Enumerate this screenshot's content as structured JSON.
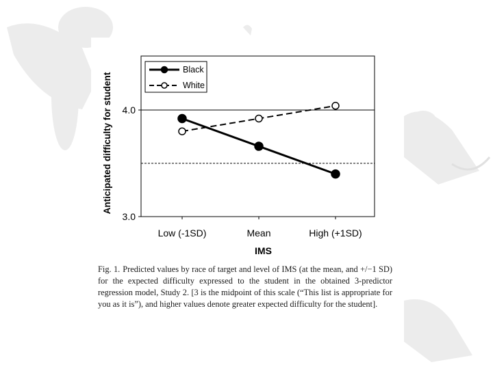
{
  "chart_data": {
    "type": "line",
    "categories": [
      "Low (-1SD)",
      "Mean",
      "High (+1SD)"
    ],
    "series": [
      {
        "name": "Black",
        "values": [
          3.92,
          3.66,
          3.4
        ],
        "style": "solid",
        "marker": "filled-circle"
      },
      {
        "name": "White",
        "values": [
          3.8,
          3.92,
          4.04
        ],
        "style": "dashed",
        "marker": "open-circle"
      }
    ],
    "xlabel": "IMS",
    "ylabel": "Anticipated difficulty for student",
    "ylim": [
      3.0,
      4.0
    ],
    "yticks": [
      "3.0",
      "4.0"
    ],
    "reference_lines": [
      4.0,
      3.5
    ],
    "legend_position": "top-left",
    "grid": false
  },
  "caption": {
    "prefix": "Fig. 1.",
    "text": "Predicted values by race of target and level of IMS (at the mean, and +/−1 SD) for the expected difficulty expressed to the student in the obtained 3-predictor regression model, Study 2. [3 is the midpoint of this scale (“This list is appropriate for you as it is”), and higher values denote greater expected difficulty for the student]."
  },
  "colors": {
    "line": "#000000",
    "background_art": "#e6e6e6"
  }
}
